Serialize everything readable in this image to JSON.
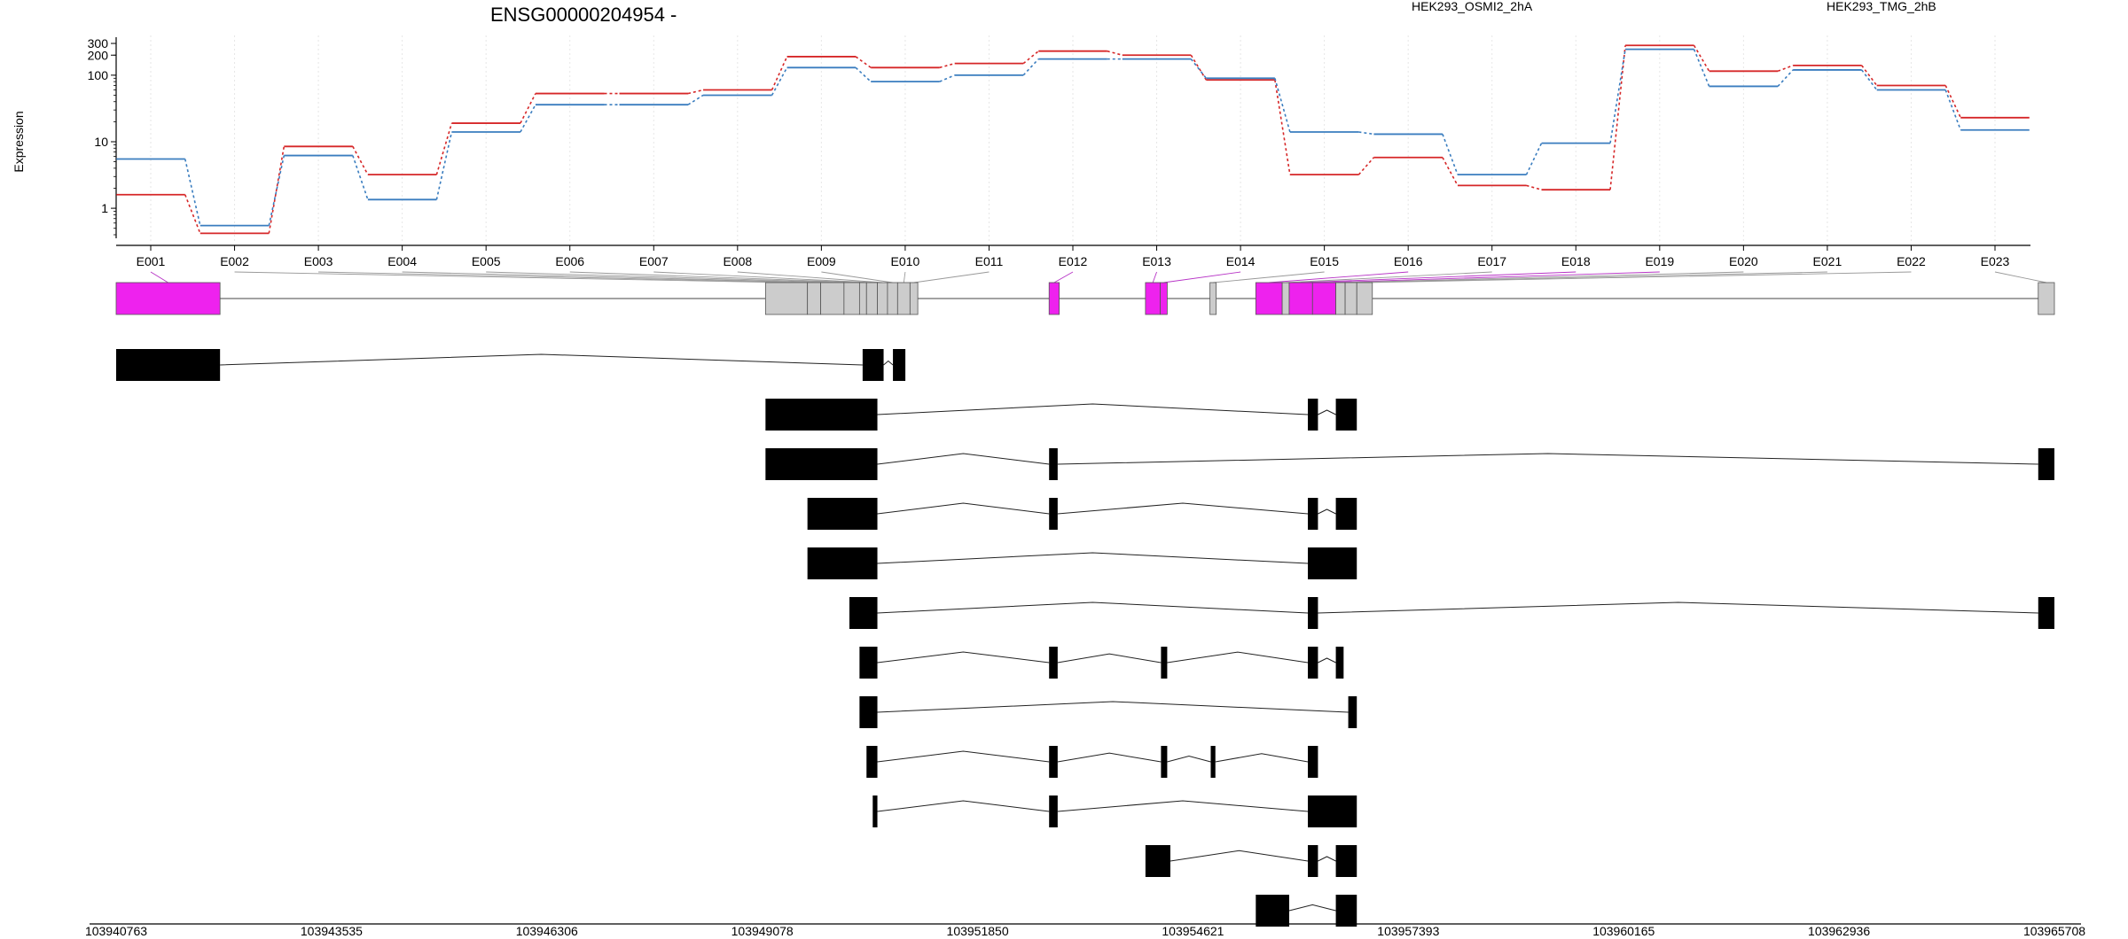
{
  "chart_data": {
    "type": "line",
    "title": "ENSG00000204954 -",
    "ylabel": "Expression",
    "y_scale": "log",
    "y_ticks": [
      1,
      10,
      100,
      200,
      300
    ],
    "y_tick_labels": [
      "1",
      "10",
      "100",
      "200",
      "300"
    ],
    "ylim": [
      0.4,
      350
    ],
    "legend_placement": "top-right",
    "categories": [
      "E001",
      "E002",
      "E003",
      "E004",
      "E005",
      "E006",
      "E007",
      "E008",
      "E009",
      "E010",
      "E011",
      "E012",
      "E013",
      "E014",
      "E015",
      "E016",
      "E017",
      "E018",
      "E019",
      "E020",
      "E021",
      "E022",
      "E023"
    ],
    "series": [
      {
        "name": "HEK293_OSMI2_2hA",
        "color": "#d62728",
        "values": [
          1.6,
          0.42,
          8.5,
          3.2,
          19,
          53,
          53,
          60,
          190,
          130,
          150,
          230,
          200,
          85,
          3.2,
          5.8,
          2.2,
          1.9,
          280,
          115,
          140,
          70,
          23
        ]
      },
      {
        "name": "HEK293_TMG_2hB",
        "color": "#3a7dbf",
        "values": [
          5.5,
          0.55,
          6.2,
          1.35,
          14,
          36,
          36,
          50,
          130,
          80,
          100,
          175,
          175,
          90,
          14,
          13,
          3.2,
          9.5,
          245,
          68,
          120,
          60,
          15
        ]
      }
    ],
    "genomic_axis": {
      "range": [
        103940763,
        103965708
      ],
      "tick_labels": [
        "103940763",
        "103943535",
        "103946306",
        "103949078",
        "103951850",
        "103954621",
        "103957393",
        "103960165",
        "103962936",
        "103965708"
      ]
    },
    "exon_bins": [
      [
        103940763,
        103942100
      ],
      [
        103949120,
        103949660
      ],
      [
        103949660,
        103949830
      ],
      [
        103949830,
        103950130
      ],
      [
        103950130,
        103950330
      ],
      [
        103950330,
        103950420
      ],
      [
        103950420,
        103950560
      ],
      [
        103950560,
        103950690
      ],
      [
        103950690,
        103950820
      ],
      [
        103950820,
        103950980
      ],
      [
        103950980,
        103951080
      ],
      [
        103952770,
        103952900
      ],
      [
        103954010,
        103954200
      ],
      [
        103954200,
        103954290
      ],
      [
        103954840,
        103954920
      ],
      [
        103955430,
        103955770
      ],
      [
        103955770,
        103955860
      ],
      [
        103955860,
        103956160
      ],
      [
        103956160,
        103956460
      ],
      [
        103956460,
        103956580
      ],
      [
        103956580,
        103956730
      ],
      [
        103956730,
        103956930
      ],
      [
        103965500,
        103965708
      ]
    ],
    "highlighted_bins": [
      "E001",
      "E012",
      "E013",
      "E014",
      "E016",
      "E018",
      "E019"
    ],
    "transcripts": [
      [
        [
          103940763,
          103942100
        ],
        [
          103950370,
          103950640
        ],
        [
          103950760,
          103950920
        ]
      ],
      [
        [
          103949120,
          103950560
        ],
        [
          103956100,
          103956230
        ],
        [
          103956460,
          103956730
        ]
      ],
      [
        [
          103949120,
          103950560
        ],
        [
          103952770,
          103952880
        ],
        [
          103965500,
          103965708
        ]
      ],
      [
        [
          103949660,
          103950560
        ],
        [
          103952770,
          103952880
        ],
        [
          103956100,
          103956230
        ],
        [
          103956460,
          103956730
        ]
      ],
      [
        [
          103949660,
          103950560
        ],
        [
          103956100,
          103956730
        ]
      ],
      [
        [
          103950200,
          103950560
        ],
        [
          103956100,
          103956230
        ],
        [
          103965500,
          103965708
        ]
      ],
      [
        [
          103950330,
          103950560
        ],
        [
          103952770,
          103952880
        ],
        [
          103954210,
          103954290
        ],
        [
          103956100,
          103956230
        ],
        [
          103956460,
          103956560
        ]
      ],
      [
        [
          103950330,
          103950560
        ],
        [
          103956620,
          103956730
        ]
      ],
      [
        [
          103950420,
          103950560
        ],
        [
          103952770,
          103952880
        ],
        [
          103954210,
          103954290
        ],
        [
          103954850,
          103954910
        ],
        [
          103956100,
          103956230
        ]
      ],
      [
        [
          103950500,
          103950560
        ],
        [
          103952770,
          103952880
        ],
        [
          103956100,
          103956730
        ]
      ],
      [
        [
          103954010,
          103954330
        ],
        [
          103956100,
          103956230
        ],
        [
          103956460,
          103956730
        ]
      ],
      [
        [
          103955430,
          103955860
        ],
        [
          103956460,
          103956730
        ]
      ]
    ]
  }
}
